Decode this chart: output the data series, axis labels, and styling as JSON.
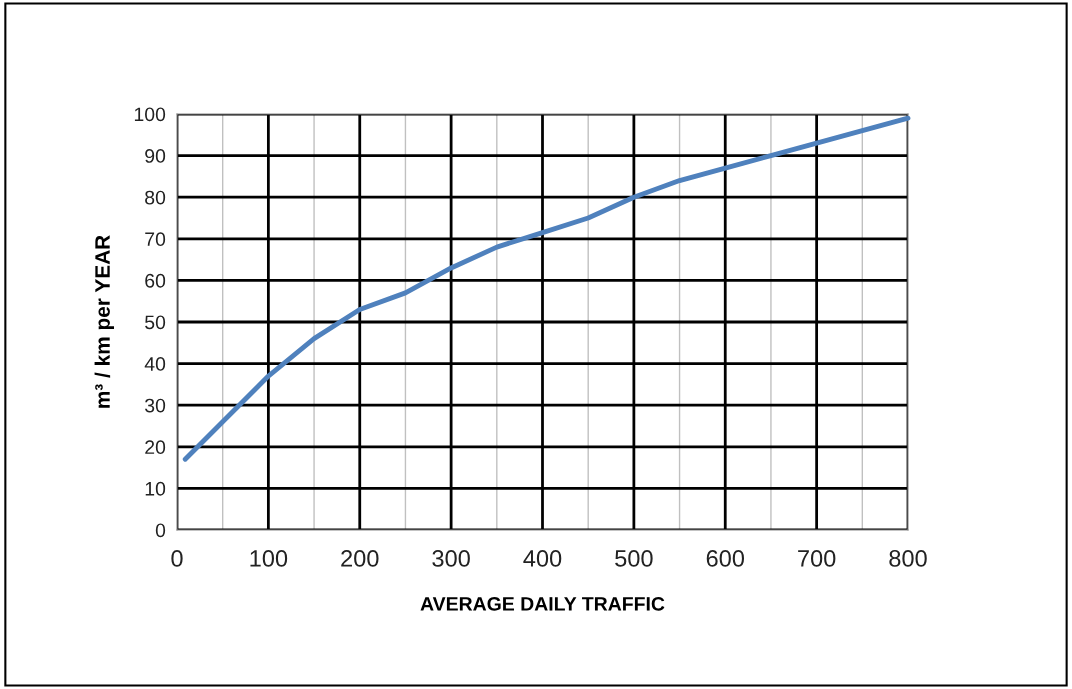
{
  "chart_data": {
    "type": "line",
    "xlabel": "AVERAGE DAILY TRAFFIC",
    "ylabel": "m³ / km per YEAR",
    "series": [
      {
        "color": "#4f81bd",
        "x": [
          9,
          50,
          100,
          150,
          200,
          250,
          300,
          350,
          400,
          450,
          500,
          550,
          600,
          650,
          700,
          750,
          800
        ],
        "values": [
          17,
          26,
          37,
          46,
          53,
          57,
          63,
          68,
          71.5,
          75,
          80,
          84,
          87,
          90,
          93,
          96,
          99
        ]
      }
    ],
    "xlim": [
      0,
      800
    ],
    "ylim": [
      0,
      100
    ],
    "xticks": [
      0,
      {
        "value": 50,
        "label": null
      },
      100,
      {
        "value": 150,
        "label": null
      },
      200,
      {
        "value": 250,
        "label": null
      },
      300,
      {
        "value": 350,
        "label": null
      },
      400,
      {
        "value": 450,
        "label": null
      },
      500,
      {
        "value": 550,
        "label": null
      },
      600,
      {
        "value": 650,
        "label": null
      },
      700,
      {
        "value": 750,
        "label": null
      },
      800
    ],
    "yticks": [
      0,
      10,
      20,
      30,
      40,
      50,
      60,
      70,
      80,
      90,
      100
    ],
    "grid": true,
    "legend": false,
    "marker": "none",
    "line_style": "solid"
  }
}
